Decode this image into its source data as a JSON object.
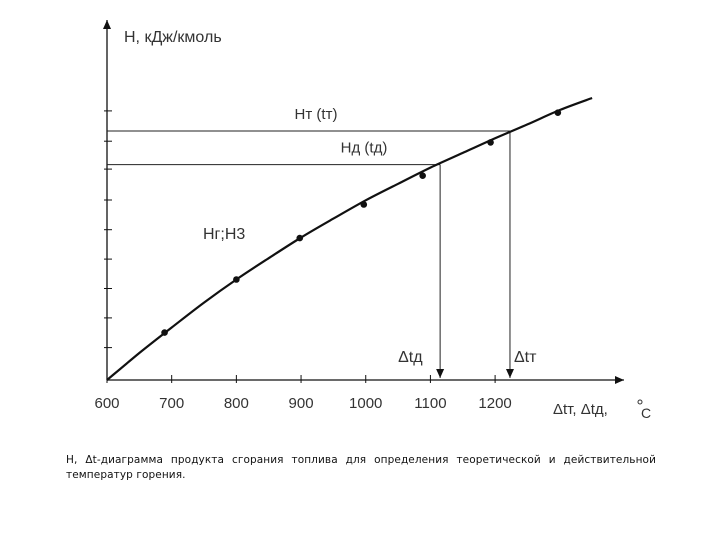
{
  "chart_data": {
    "type": "line",
    "ylabel": "H,   кДж/кмоль",
    "xlabel": "Δtт, Δtд, °C",
    "xlabel_main": "Δtт, Δtд,",
    "xlabel_unit": "С",
    "xlim": [
      600,
      1390
    ],
    "ylim": [
      0,
      100
    ],
    "x_ticks": [
      600,
      700,
      800,
      900,
      1000,
      1100,
      1200
    ],
    "x_tick_labels": [
      "600",
      "700",
      "800",
      "900",
      "1000",
      "1100",
      "1200"
    ],
    "y_ticks": [
      10.8,
      20.7,
      30.5,
      40.3,
      50.1,
      60.0,
      70.3,
      79.6,
      89.7
    ],
    "curve_label": "Нг;Н3",
    "series": [
      {
        "values_x": [
          600,
          650,
          700,
          750,
          800,
          850,
          900,
          950,
          1000,
          1050,
          1100,
          1150,
          1200,
          1250,
          1300,
          1350
        ],
        "values_y": [
          0,
          9.0,
          17.5,
          25.8,
          33.5,
          40.6,
          47.5,
          53.8,
          59.9,
          65.4,
          70.8,
          75.7,
          80.6,
          85.2,
          90.0,
          94.0
        ]
      }
    ],
    "markers": {
      "x": [
        689,
        800,
        898,
        997,
        1088,
        1193,
        1297
      ],
      "y": [
        15.8,
        33.5,
        47.3,
        58.5,
        68.1,
        79.2,
        89.1
      ]
    },
    "annotations": [
      {
        "label": "Нт (tт)",
        "y": 83.0,
        "x_end": 1223,
        "vertical_label": "Δtт"
      },
      {
        "label": "Нд (tд)",
        "y": 71.8,
        "x_end": 1115,
        "vertical_label": "Δtд"
      }
    ]
  },
  "caption": "Н, Δt-диаграмма продукта сгорания топлива для определения теоретической и действительной температур горения."
}
